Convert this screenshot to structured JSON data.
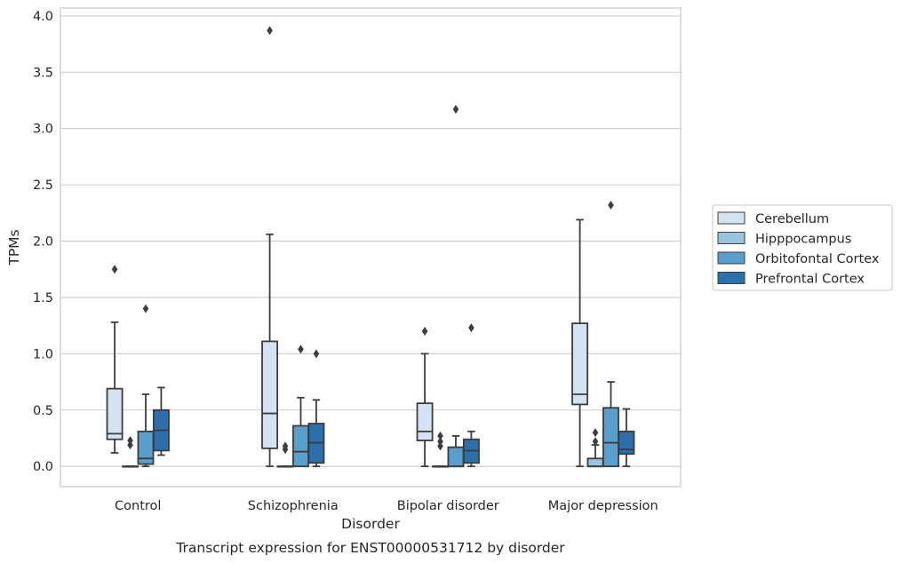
{
  "chart_data": {
    "type": "box",
    "caption": "Transcript expression for ENST00000531712 by disorder",
    "xlabel": "Disorder",
    "ylabel": "TPMs",
    "ylim": [
      -0.18,
      4.07
    ],
    "yticks": [
      "0.0",
      "0.5",
      "1.0",
      "1.5",
      "2.0",
      "2.5",
      "3.0",
      "3.5",
      "4.0"
    ],
    "categories": [
      "Control",
      "Schizophrenia",
      "Bipolar disorder",
      "Major depression"
    ],
    "grid": "horizontal",
    "legend_position": "right",
    "series": [
      {
        "name": "Cerebellum",
        "color": "#d3e3f2",
        "boxes": [
          {
            "whislo": 0.12,
            "q1": 0.24,
            "med": 0.29,
            "q3": 0.69,
            "whishi": 1.28,
            "fliers": [
              1.75
            ]
          },
          {
            "whislo": 0.0,
            "q1": 0.16,
            "med": 0.47,
            "q3": 1.11,
            "whishi": 2.06,
            "fliers": [
              3.87
            ]
          },
          {
            "whislo": 0.0,
            "q1": 0.23,
            "med": 0.31,
            "q3": 0.56,
            "whishi": 1.0,
            "fliers": [
              1.2
            ]
          },
          {
            "whislo": 0.0,
            "q1": 0.55,
            "med": 0.64,
            "q3": 1.27,
            "whishi": 2.19,
            "fliers": []
          }
        ]
      },
      {
        "name": "Hipppocampus",
        "color": "#9bc4df",
        "boxes": [
          {
            "whislo": 0.0,
            "q1": 0.0,
            "med": 0.0,
            "q3": 0.0,
            "whishi": 0.0,
            "fliers": [
              0.19,
              0.23
            ]
          },
          {
            "whislo": 0.0,
            "q1": 0.0,
            "med": 0.0,
            "q3": 0.0,
            "whishi": 0.0,
            "fliers": [
              0.15,
              0.18
            ]
          },
          {
            "whislo": 0.0,
            "q1": 0.0,
            "med": 0.0,
            "q3": 0.0,
            "whishi": 0.0,
            "fliers": [
              0.18,
              0.22,
              0.27
            ]
          },
          {
            "whislo": 0.0,
            "q1": 0.0,
            "med": 0.0,
            "q3": 0.07,
            "whishi": 0.19,
            "fliers": [
              0.22,
              0.3
            ]
          }
        ]
      },
      {
        "name": "Orbitofontal Cortex",
        "color": "#5a9ecb",
        "boxes": [
          {
            "whislo": 0.0,
            "q1": 0.02,
            "med": 0.07,
            "q3": 0.31,
            "whishi": 0.64,
            "fliers": [
              1.4
            ]
          },
          {
            "whislo": 0.0,
            "q1": 0.0,
            "med": 0.13,
            "q3": 0.36,
            "whishi": 0.61,
            "fliers": [
              1.04
            ]
          },
          {
            "whislo": 0.0,
            "q1": 0.0,
            "med": 0.0,
            "q3": 0.17,
            "whishi": 0.27,
            "fliers": [
              3.17
            ]
          },
          {
            "whislo": 0.0,
            "q1": 0.0,
            "med": 0.21,
            "q3": 0.52,
            "whishi": 0.75,
            "fliers": [
              2.32
            ]
          }
        ]
      },
      {
        "name": "Prefrontal Cortex",
        "color": "#2b6fad",
        "boxes": [
          {
            "whislo": 0.1,
            "q1": 0.14,
            "med": 0.32,
            "q3": 0.5,
            "whishi": 0.7,
            "fliers": []
          },
          {
            "whislo": 0.0,
            "q1": 0.03,
            "med": 0.21,
            "q3": 0.38,
            "whishi": 0.59,
            "fliers": [
              1.0
            ]
          },
          {
            "whislo": 0.0,
            "q1": 0.03,
            "med": 0.14,
            "q3": 0.24,
            "whishi": 0.31,
            "fliers": [
              1.23
            ]
          },
          {
            "whislo": 0.0,
            "q1": 0.11,
            "med": 0.15,
            "q3": 0.31,
            "whishi": 0.51,
            "fliers": []
          }
        ]
      }
    ]
  }
}
